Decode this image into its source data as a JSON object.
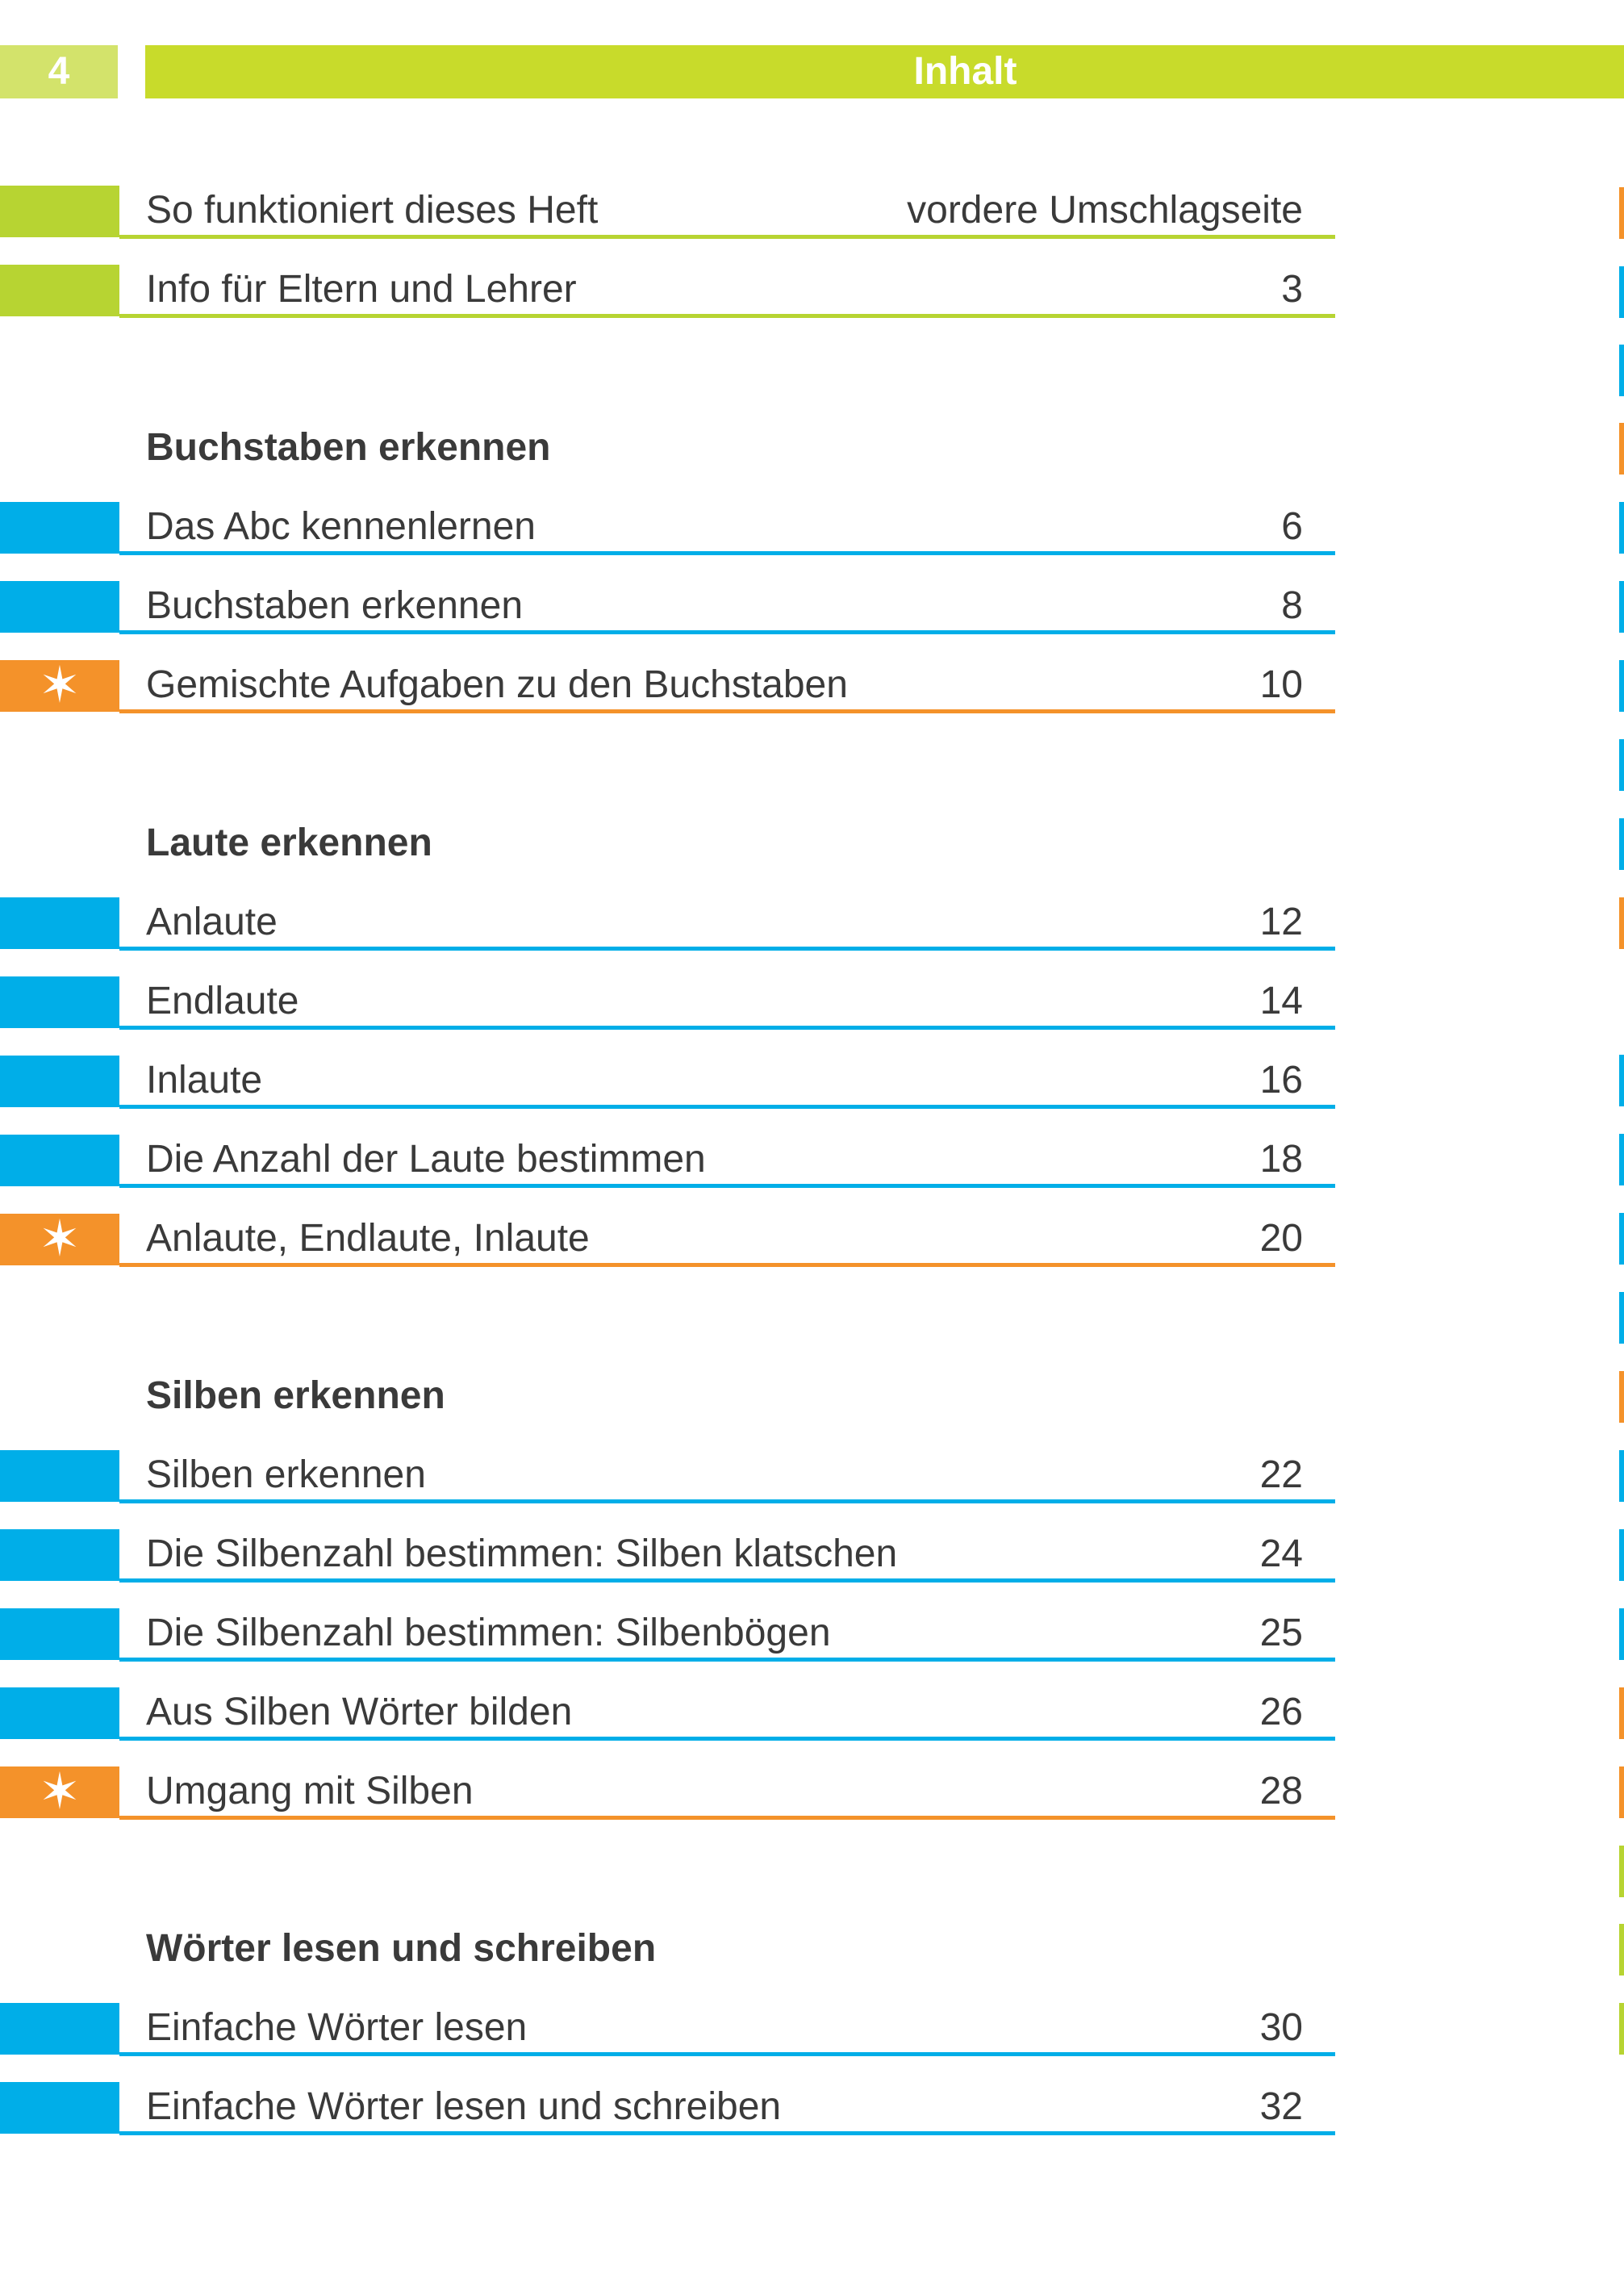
{
  "header": {
    "page_number": "4",
    "title": "Inhalt"
  },
  "intro": [
    {
      "label": "So funktioniert dieses Heft",
      "page": "vordere Umschlagseite",
      "color": "green",
      "star": false
    },
    {
      "label": "Info für Eltern und Lehrer",
      "page": "3",
      "color": "green",
      "star": false
    }
  ],
  "sections": [
    {
      "heading": "Buchstaben erkennen",
      "items": [
        {
          "label": "Das Abc kennenlernen",
          "page": "6",
          "color": "blue",
          "star": false
        },
        {
          "label": "Buchstaben erkennen",
          "page": "8",
          "color": "blue",
          "star": false
        },
        {
          "label": "Gemischte Aufgaben zu den Buchstaben",
          "page": "10",
          "color": "orange",
          "star": true
        }
      ]
    },
    {
      "heading": "Laute erkennen",
      "items": [
        {
          "label": "Anlaute",
          "page": "12",
          "color": "blue",
          "star": false
        },
        {
          "label": "Endlaute",
          "page": "14",
          "color": "blue",
          "star": false
        },
        {
          "label": "Inlaute",
          "page": "16",
          "color": "blue",
          "star": false
        },
        {
          "label": "Die Anzahl der Laute bestimmen",
          "page": "18",
          "color": "blue",
          "star": false
        },
        {
          "label": "Anlaute, Endlaute, Inlaute",
          "page": "20",
          "color": "orange",
          "star": true
        }
      ]
    },
    {
      "heading": "Silben erkennen",
      "items": [
        {
          "label": "Silben erkennen",
          "page": "22",
          "color": "blue",
          "star": false
        },
        {
          "label": "Die Silbenzahl bestimmen: Silben klatschen",
          "page": "24",
          "color": "blue",
          "star": false
        },
        {
          "label": "Die Silbenzahl bestimmen: Silbenbögen",
          "page": "25",
          "color": "blue",
          "star": false
        },
        {
          "label": "Aus Silben Wörter bilden",
          "page": "26",
          "color": "blue",
          "star": false
        },
        {
          "label": "Umgang mit Silben",
          "page": "28",
          "color": "orange",
          "star": true
        }
      ]
    },
    {
      "heading": "Wörter lesen und schreiben",
      "items": [
        {
          "label": "Einfache Wörter lesen",
          "page": "30",
          "color": "blue",
          "star": false
        },
        {
          "label": "Einfache Wörter lesen und schreiben",
          "page": "32",
          "color": "blue",
          "star": false
        }
      ]
    }
  ],
  "edge_marks": [
    "orange",
    "blue",
    "blue",
    "orange",
    "blue",
    "blue",
    "blue",
    "blue",
    "blue",
    "orange",
    "blue",
    "blue",
    "blue",
    "blue",
    "orange",
    "blue",
    "blue",
    "blue",
    "orange",
    "orange",
    "green",
    "green",
    "green"
  ],
  "colors": {
    "green": "#b7d432",
    "blue": "#00aee8",
    "orange": "#f4922a",
    "header_green": "#c8db2b",
    "header_light_green": "#d3e36b",
    "text": "#3a3a3a"
  },
  "icons": {
    "star": "star-icon"
  }
}
